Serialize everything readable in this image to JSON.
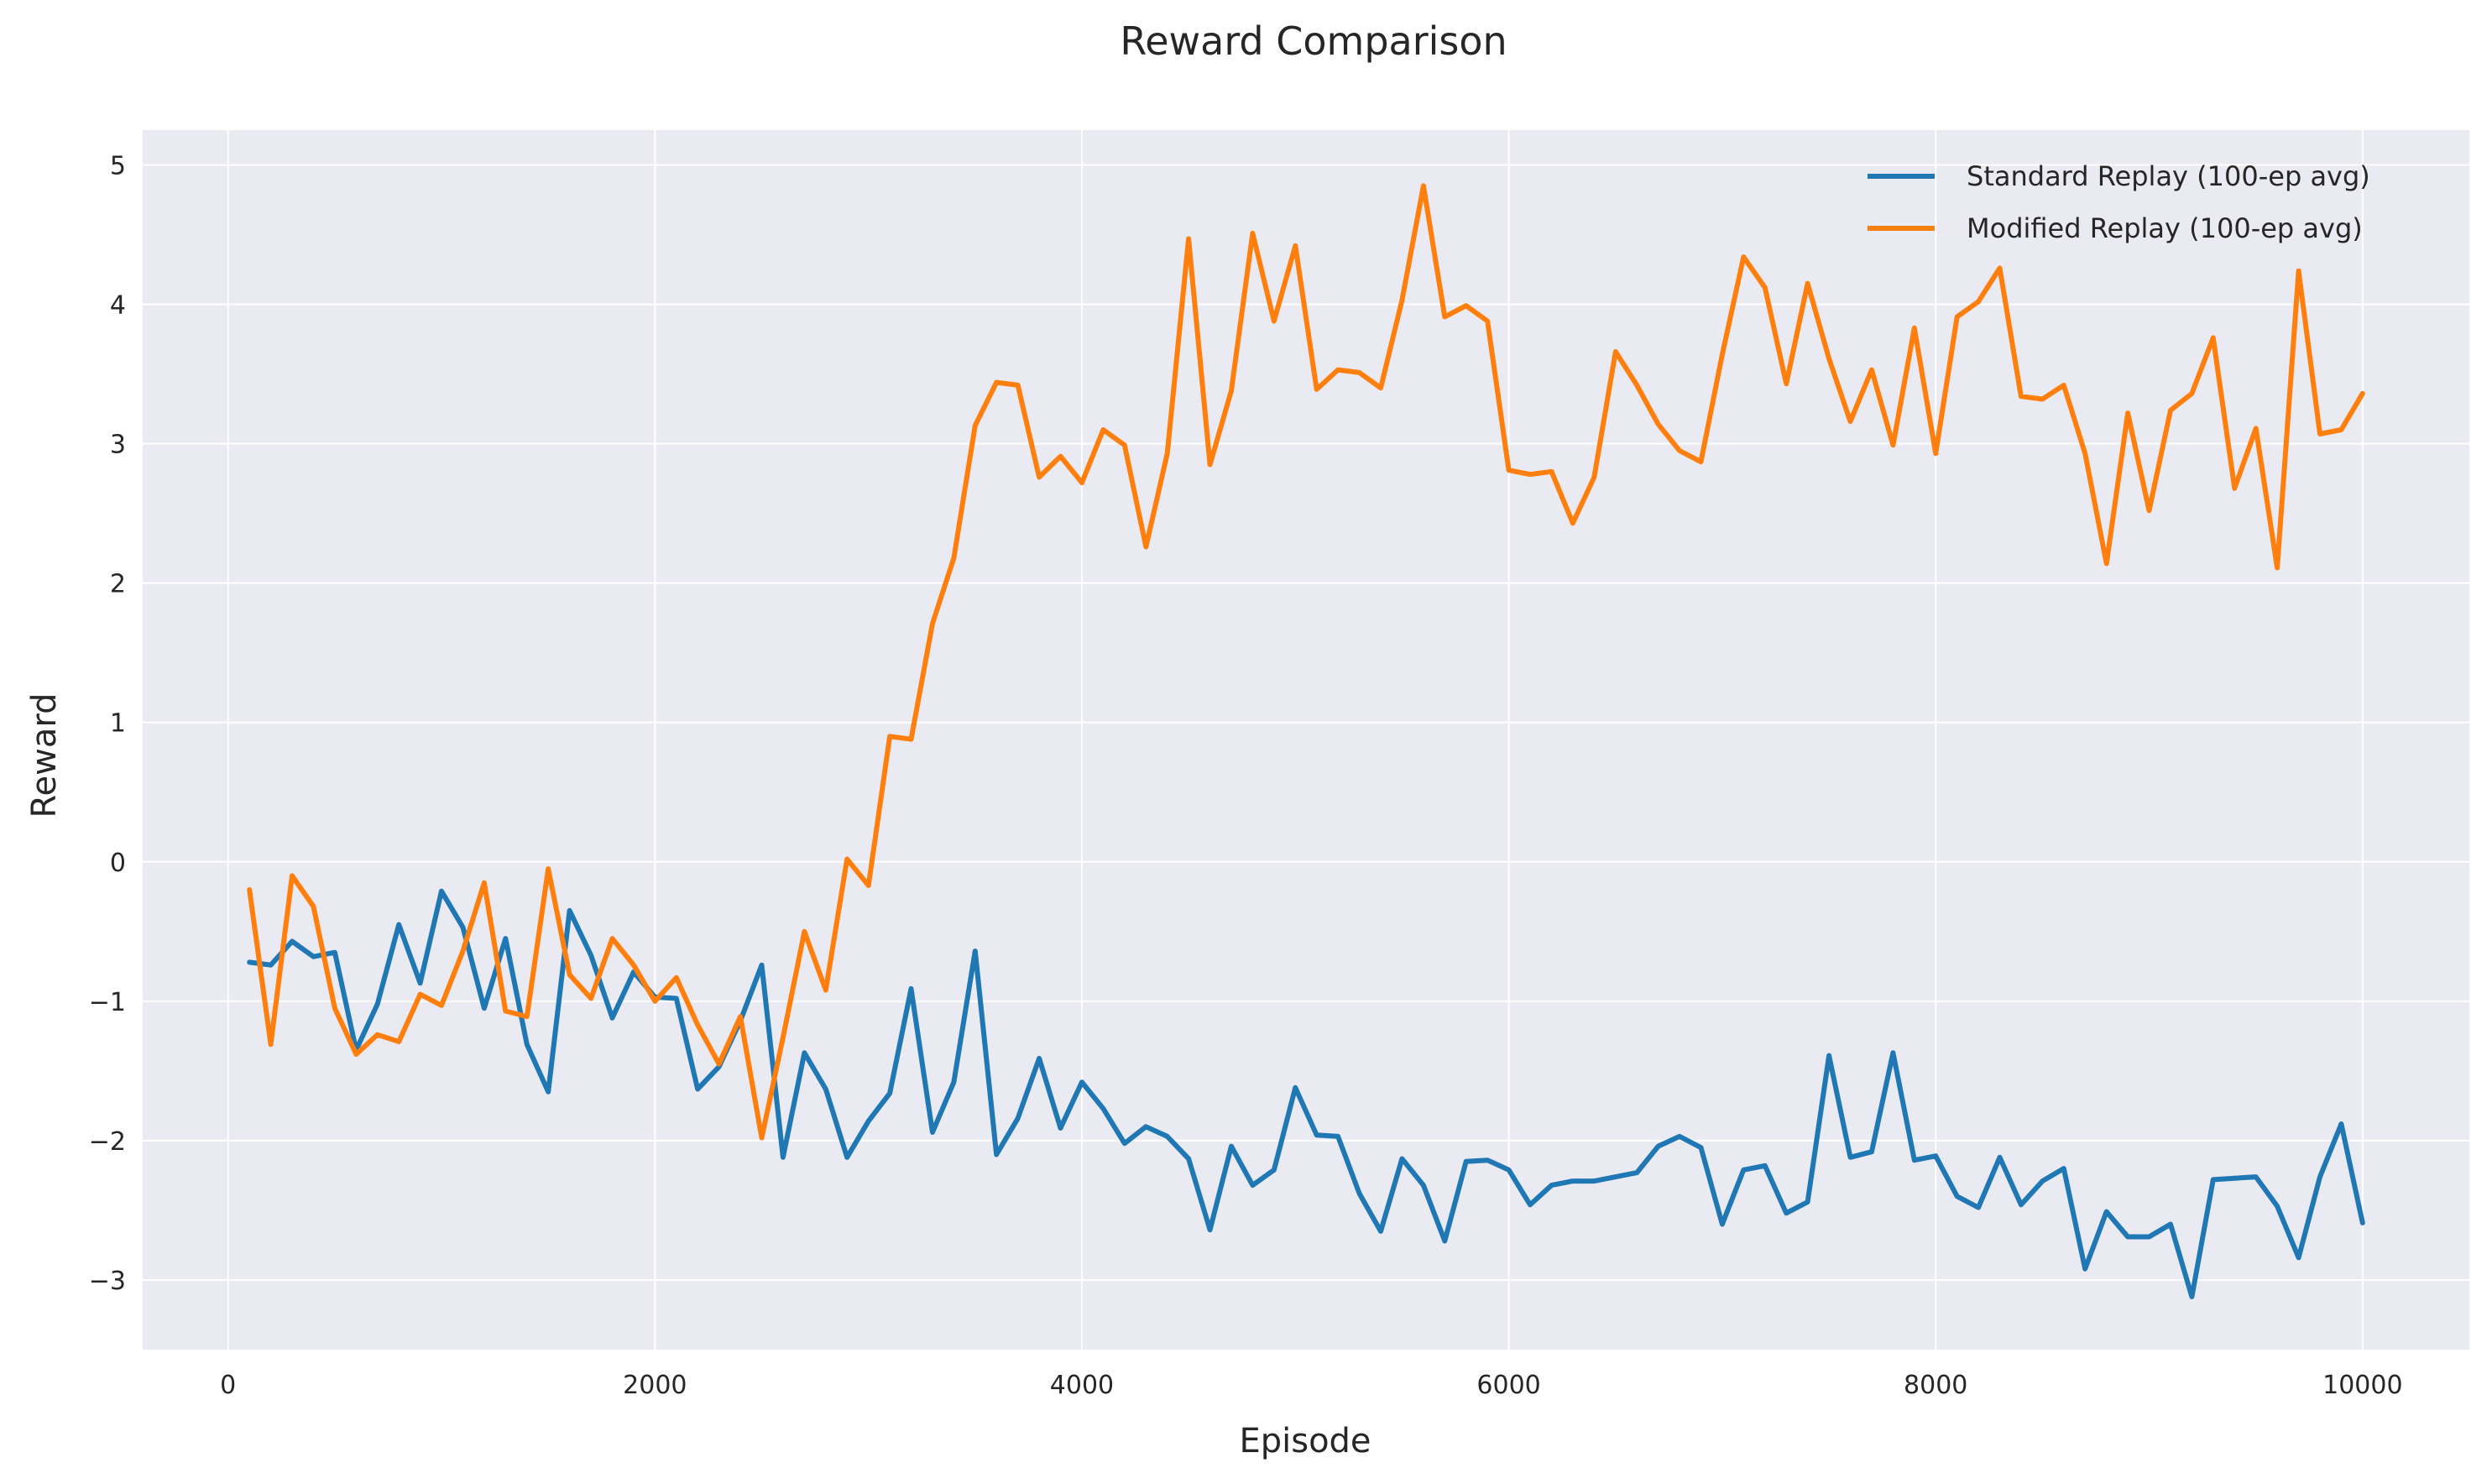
{
  "chart_data": {
    "type": "line",
    "title": "Reward Comparison",
    "xlabel": "Episode",
    "ylabel": "Reward",
    "xlim": [
      -400,
      10500
    ],
    "ylim": [
      -3.5,
      5.25
    ],
    "xticks": [
      0,
      2000,
      4000,
      6000,
      8000,
      10000
    ],
    "xtick_labels": [
      "0",
      "2000",
      "4000",
      "6000",
      "8000",
      "10000"
    ],
    "yticks": [
      -3,
      -2,
      -1,
      0,
      1,
      2,
      3,
      4,
      5
    ],
    "ytick_labels": [
      "−3",
      "−2",
      "−1",
      "0",
      "1",
      "2",
      "3",
      "4",
      "5"
    ],
    "grid": true,
    "legend_position": "top-right",
    "x": [
      100,
      200,
      300,
      400,
      500,
      600,
      700,
      800,
      900,
      1000,
      1100,
      1200,
      1300,
      1400,
      1500,
      1600,
      1700,
      1800,
      1900,
      2000,
      2100,
      2200,
      2300,
      2400,
      2500,
      2600,
      2700,
      2800,
      2900,
      3000,
      3100,
      3200,
      3300,
      3400,
      3500,
      3600,
      3700,
      3800,
      3900,
      4000,
      4100,
      4200,
      4300,
      4400,
      4500,
      4600,
      4700,
      4800,
      4900,
      5000,
      5100,
      5200,
      5300,
      5400,
      5500,
      5600,
      5700,
      5800,
      5900,
      6000,
      6100,
      6200,
      6300,
      6400,
      6500,
      6600,
      6700,
      6800,
      6900,
      7000,
      7100,
      7200,
      7300,
      7400,
      7500,
      7600,
      7700,
      7800,
      7900,
      8000,
      8100,
      8200,
      8300,
      8400,
      8500,
      8600,
      8700,
      8800,
      8900,
      9000,
      9100,
      9200,
      9300,
      9400,
      9500,
      9600,
      9700,
      9800,
      9900,
      10000
    ],
    "series": [
      {
        "name": "Standard Replay (100-ep avg)",
        "color": "#1f77b4",
        "values": [
          -0.72,
          -0.74,
          -0.57,
          -0.68,
          -0.65,
          -1.35,
          -1.02,
          -0.45,
          -0.87,
          -0.21,
          -0.47,
          -1.05,
          -0.55,
          -1.31,
          -1.65,
          -0.35,
          -0.67,
          -1.12,
          -0.79,
          -0.97,
          -0.98,
          -1.63,
          -1.47,
          -1.14,
          -0.74,
          -2.12,
          -1.37,
          -1.63,
          -2.12,
          -1.86,
          -1.66,
          -0.91,
          -1.94,
          -1.58,
          -0.64,
          -2.1,
          -1.84,
          -1.41,
          -1.91,
          -1.58,
          -1.77,
          -2.02,
          -1.9,
          -1.97,
          -2.13,
          -2.64,
          -2.04,
          -2.32,
          -2.21,
          -1.62,
          -1.96,
          -1.97,
          -2.38,
          -2.65,
          -2.13,
          -2.32,
          -2.72,
          -2.15,
          -2.14,
          -2.21,
          -2.46,
          -2.32,
          -2.29,
          -2.29,
          -2.26,
          -2.23,
          -2.04,
          -1.97,
          -2.05,
          -2.6,
          -2.21,
          -2.18,
          -2.52,
          -2.44,
          -1.39,
          -2.12,
          -2.08,
          -1.37,
          -2.14,
          -2.11,
          -2.4,
          -2.48,
          -2.12,
          -2.46,
          -2.29,
          -2.2,
          -2.92,
          -2.51,
          -2.69,
          -2.69,
          -2.6,
          -3.12,
          -2.28,
          -2.27,
          -2.26,
          -2.47,
          -2.84,
          -2.26,
          -1.88,
          -2.59
        ]
      },
      {
        "name": "Modified Replay (100-ep avg)",
        "color": "#ff7f0e",
        "values": [
          -0.2,
          -1.31,
          -0.1,
          -0.32,
          -1.05,
          -1.38,
          -1.24,
          -1.29,
          -0.95,
          -1.03,
          -0.64,
          -0.15,
          -1.07,
          -1.11,
          -0.05,
          -0.81,
          -0.98,
          -0.55,
          -0.74,
          -1.0,
          -0.83,
          -1.17,
          -1.45,
          -1.11,
          -1.98,
          -1.26,
          -0.5,
          -0.92,
          0.02,
          -0.17,
          0.9,
          0.88,
          1.71,
          2.18,
          3.13,
          3.44,
          3.42,
          2.76,
          2.91,
          2.72,
          3.1,
          2.99,
          2.26,
          2.93,
          4.47,
          2.85,
          3.38,
          4.51,
          3.88,
          4.42,
          3.39,
          3.53,
          3.51,
          3.4,
          4.03,
          4.85,
          3.91,
          3.99,
          3.88,
          2.81,
          2.78,
          2.8,
          2.43,
          2.76,
          3.66,
          3.42,
          3.14,
          2.95,
          2.87,
          3.64,
          4.34,
          4.12,
          3.43,
          4.15,
          3.61,
          3.16,
          3.53,
          2.99,
          3.83,
          2.93,
          3.91,
          4.02,
          4.26,
          3.34,
          3.32,
          3.42,
          2.93,
          2.14,
          3.22,
          2.52,
          3.24,
          3.36,
          3.76,
          2.68,
          3.11,
          2.11,
          4.24,
          3.07,
          3.1,
          3.36
        ]
      }
    ]
  }
}
